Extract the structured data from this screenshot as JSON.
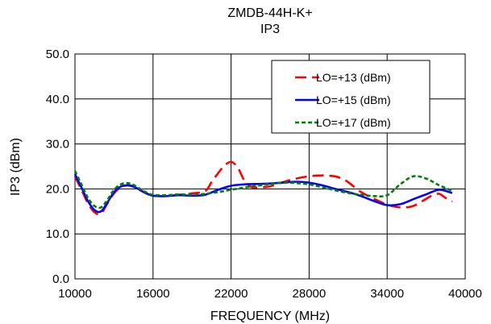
{
  "chart_data": {
    "type": "line",
    "title": "ZMDB-44H-K+",
    "subtitle": "IP3",
    "xlabel": "FREQUENCY (MHz)",
    "ylabel": "IP3 (dBm)",
    "xlim": [
      10000,
      40000
    ],
    "ylim": [
      0,
      50
    ],
    "x_ticks": [
      "10000",
      "16000",
      "22000",
      "28000",
      "34000",
      "40000"
    ],
    "y_ticks": [
      "0.0",
      "10.0",
      "20.0",
      "30.0",
      "40.0",
      "50.0"
    ],
    "grid": true,
    "legend_position": "top-right",
    "series": [
      {
        "name": "LO=+13 (dBm)",
        "color": "#ff0000",
        "style": "dashed",
        "x": [
          10000,
          10500,
          11000,
          11500,
          12000,
          12500,
          13000,
          13500,
          14000,
          14500,
          15000,
          15500,
          16000,
          17000,
          18000,
          19000,
          20000,
          20500,
          21000,
          21500,
          22000,
          22500,
          23000,
          23500,
          24000,
          25000,
          26000,
          27000,
          28000,
          29000,
          30000,
          30500,
          31000,
          32000,
          33000,
          34000,
          35000,
          36000,
          37000,
          37500,
          38000,
          38500,
          39000
        ],
        "values": [
          22.8,
          19.8,
          16.8,
          14.8,
          14.5,
          16.8,
          19.0,
          20.3,
          20.8,
          20.6,
          19.7,
          19.0,
          18.5,
          18.4,
          18.7,
          19.0,
          19.5,
          21.5,
          23.5,
          25.2,
          26.0,
          24.8,
          22.0,
          20.5,
          20.3,
          20.6,
          21.5,
          22.3,
          22.8,
          23.0,
          22.8,
          22.3,
          21.5,
          19.3,
          17.8,
          16.5,
          15.9,
          16.2,
          17.8,
          18.6,
          18.9,
          18.0,
          17.2
        ]
      },
      {
        "name": "LO=+15 (dBm)",
        "color": "#0000ff",
        "style": "solid",
        "x": [
          10000,
          10500,
          11000,
          11500,
          12000,
          12500,
          13000,
          13500,
          14000,
          14500,
          15000,
          15500,
          16000,
          17000,
          18000,
          19000,
          20000,
          21000,
          22000,
          23000,
          24000,
          25000,
          26000,
          27000,
          28000,
          29000,
          30000,
          31000,
          32000,
          33000,
          34000,
          35000,
          36000,
          37000,
          38000,
          39000
        ],
        "values": [
          23.3,
          20.3,
          17.3,
          15.3,
          15.0,
          17.0,
          19.3,
          20.5,
          20.8,
          20.5,
          19.8,
          19.0,
          18.5,
          18.4,
          18.6,
          18.5,
          18.7,
          19.8,
          20.7,
          21.0,
          21.1,
          21.2,
          21.4,
          21.6,
          21.4,
          20.8,
          20.0,
          19.3,
          18.4,
          17.3,
          16.4,
          16.6,
          17.7,
          18.8,
          19.8,
          19.1
        ]
      },
      {
        "name": "LO=+17 (dBm)",
        "color": "#008000",
        "style": "dotted",
        "x": [
          10000,
          10500,
          11000,
          11500,
          12000,
          12500,
          13000,
          13500,
          14000,
          14500,
          15000,
          15500,
          16000,
          17000,
          18000,
          19000,
          20000,
          21000,
          22000,
          23000,
          24000,
          25000,
          26000,
          27000,
          28000,
          29000,
          30000,
          31000,
          32000,
          33000,
          34000,
          35000,
          36000,
          37000,
          38000,
          39000
        ],
        "values": [
          24.0,
          21.0,
          18.0,
          16.2,
          15.9,
          17.6,
          19.8,
          21.0,
          21.3,
          20.9,
          20.0,
          19.2,
          18.7,
          18.6,
          18.8,
          18.7,
          18.9,
          19.3,
          19.8,
          20.3,
          20.7,
          21.1,
          21.4,
          21.3,
          21.0,
          20.4,
          19.7,
          19.1,
          18.7,
          18.4,
          18.6,
          21.0,
          22.8,
          22.3,
          20.8,
          19.6
        ]
      }
    ]
  }
}
